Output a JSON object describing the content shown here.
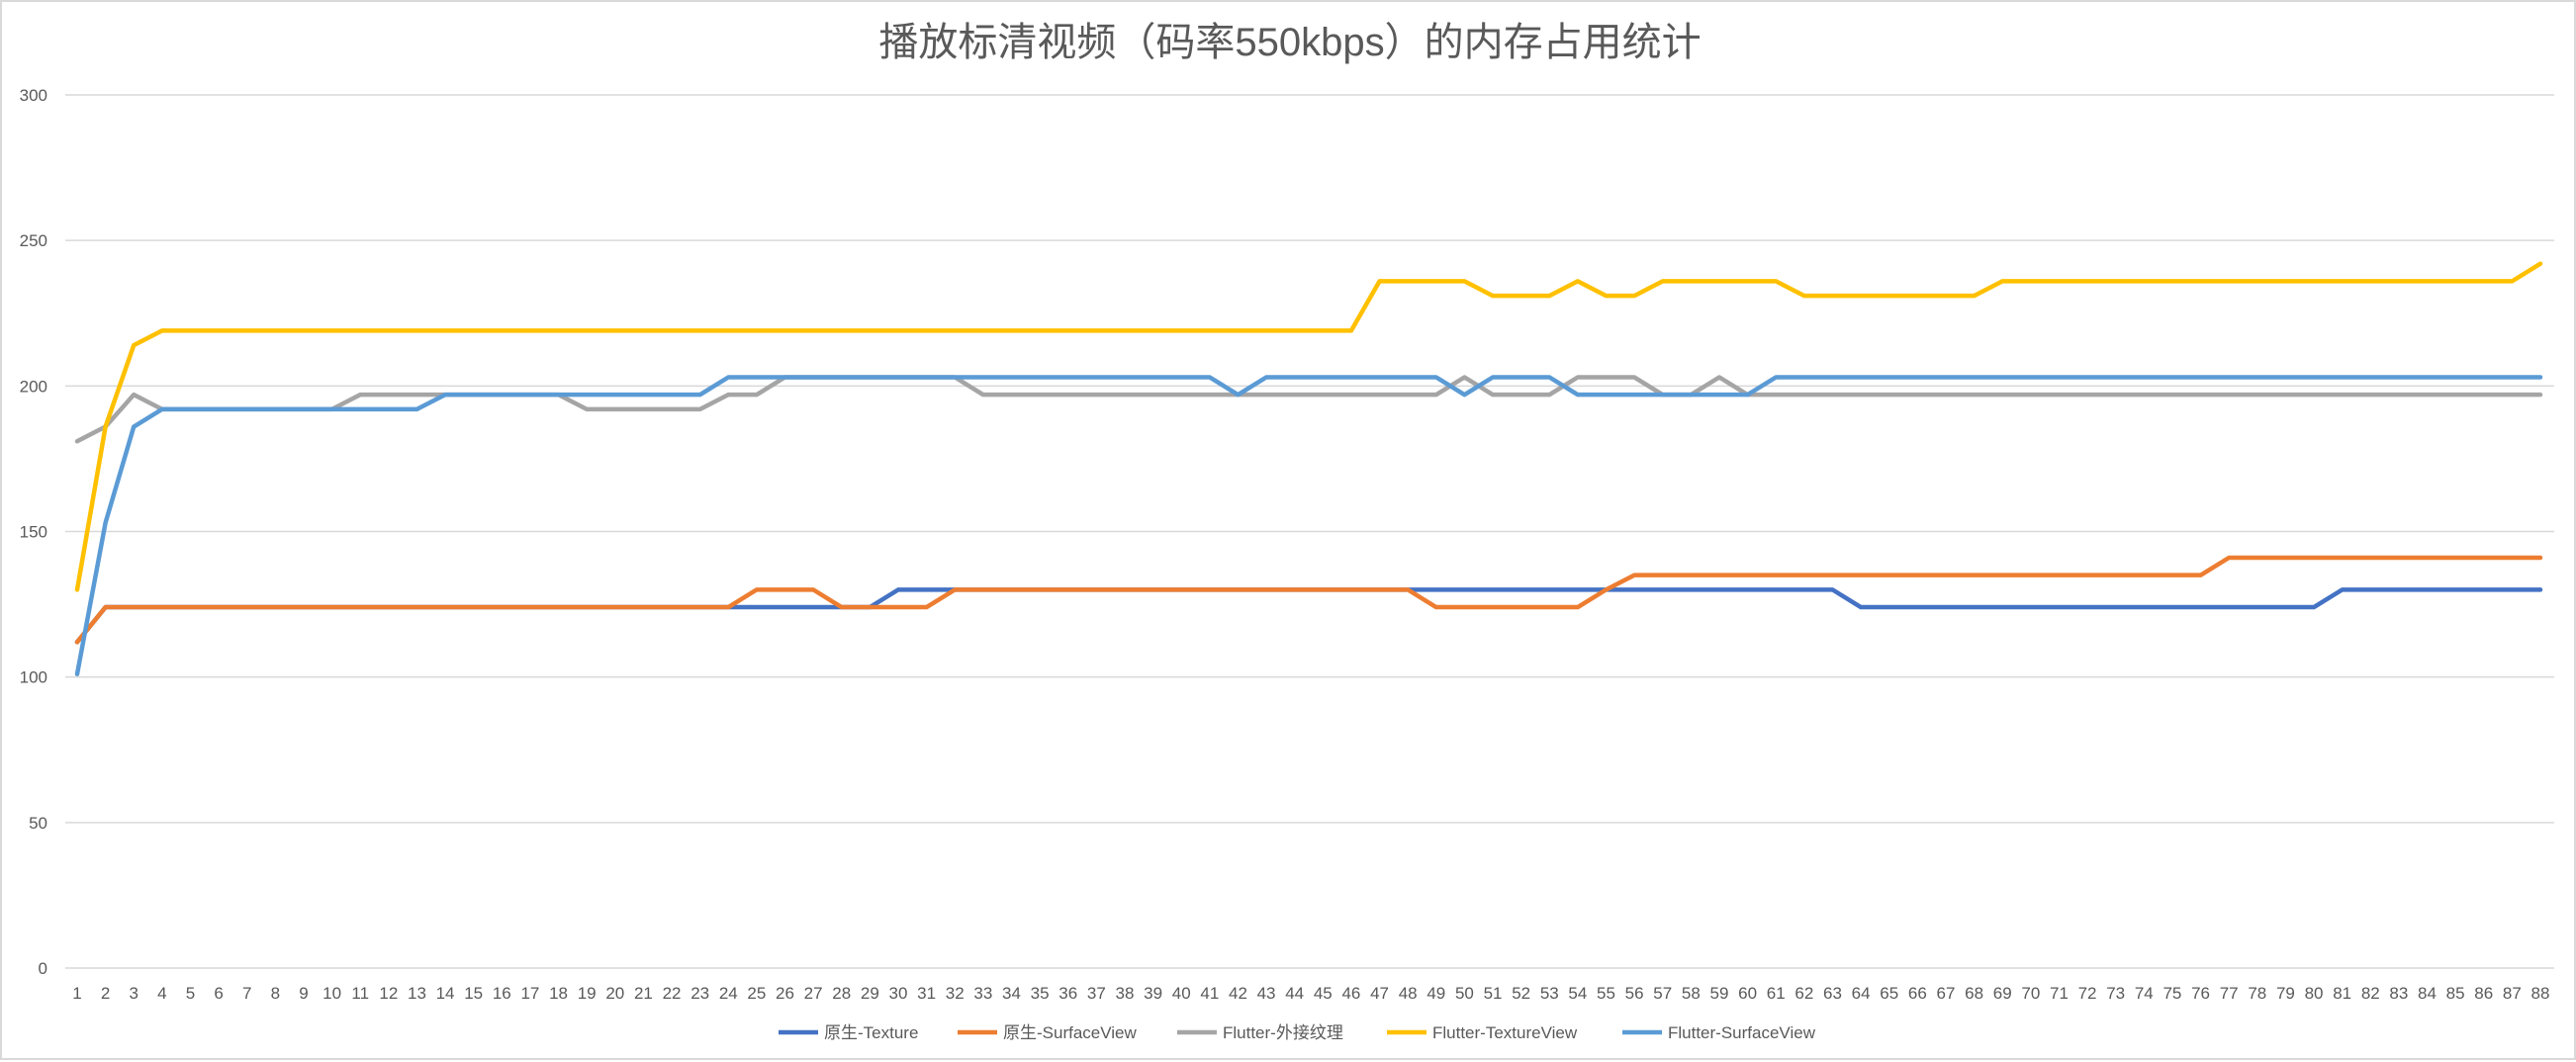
{
  "chart_data": {
    "type": "line",
    "title": "播放标清视频（码率550kbps）的内存占用统计",
    "xlabel": "",
    "ylabel": "",
    "ylim": [
      0,
      300
    ],
    "yticks": [
      0,
      50,
      100,
      150,
      200,
      250,
      300
    ],
    "grid": true,
    "legend_position": "bottom",
    "x": [
      1,
      2,
      3,
      4,
      5,
      6,
      7,
      8,
      9,
      10,
      11,
      12,
      13,
      14,
      15,
      16,
      17,
      18,
      19,
      20,
      21,
      22,
      23,
      24,
      25,
      26,
      27,
      28,
      29,
      30,
      31,
      32,
      33,
      34,
      35,
      36,
      37,
      38,
      39,
      40,
      41,
      42,
      43,
      44,
      45,
      46,
      47,
      48,
      49,
      50,
      51,
      52,
      53,
      54,
      55,
      56,
      57,
      58,
      59,
      60,
      61,
      62,
      63,
      64,
      65,
      66,
      67,
      68,
      69,
      70,
      71,
      72,
      73,
      74,
      75,
      76,
      77,
      78,
      79,
      80,
      81,
      82,
      83,
      84,
      85,
      86,
      87,
      88
    ],
    "series": [
      {
        "name": "原生-Texture",
        "color": "#4472C4",
        "values": [
          112,
          124,
          124,
          124,
          124,
          124,
          124,
          124,
          124,
          124,
          124,
          124,
          124,
          124,
          124,
          124,
          124,
          124,
          124,
          124,
          124,
          124,
          124,
          124,
          124,
          124,
          124,
          124,
          124,
          130,
          130,
          130,
          130,
          130,
          130,
          130,
          130,
          130,
          130,
          130,
          130,
          130,
          130,
          130,
          130,
          130,
          130,
          130,
          130,
          130,
          130,
          130,
          130,
          130,
          130,
          130,
          130,
          130,
          130,
          130,
          130,
          130,
          130,
          124,
          124,
          124,
          124,
          124,
          124,
          124,
          124,
          124,
          124,
          124,
          124,
          124,
          124,
          124,
          124,
          124,
          130,
          130,
          130,
          130,
          130,
          130,
          130,
          130
        ]
      },
      {
        "name": "原生-SurfaceView",
        "color": "#ED7D31",
        "values": [
          112,
          124,
          124,
          124,
          124,
          124,
          124,
          124,
          124,
          124,
          124,
          124,
          124,
          124,
          124,
          124,
          124,
          124,
          124,
          124,
          124,
          124,
          124,
          124,
          130,
          130,
          130,
          124,
          124,
          124,
          124,
          130,
          130,
          130,
          130,
          130,
          130,
          130,
          130,
          130,
          130,
          130,
          130,
          130,
          130,
          130,
          130,
          130,
          124,
          124,
          124,
          124,
          124,
          124,
          130,
          135,
          135,
          135,
          135,
          135,
          135,
          135,
          135,
          135,
          135,
          135,
          135,
          135,
          135,
          135,
          135,
          135,
          135,
          135,
          135,
          135,
          141,
          141,
          141,
          141,
          141,
          141,
          141,
          141,
          141,
          141,
          141,
          141
        ]
      },
      {
        "name": "Flutter-外接纹理",
        "color": "#A5A5A5",
        "values": [
          181,
          186,
          197,
          192,
          192,
          192,
          192,
          192,
          192,
          192,
          197,
          197,
          197,
          197,
          197,
          197,
          197,
          197,
          192,
          192,
          192,
          192,
          192,
          197,
          197,
          203,
          203,
          203,
          203,
          203,
          203,
          203,
          197,
          197,
          197,
          197,
          197,
          197,
          197,
          197,
          197,
          197,
          197,
          197,
          197,
          197,
          197,
          197,
          197,
          203,
          197,
          197,
          197,
          203,
          203,
          203,
          197,
          197,
          203,
          197,
          197,
          197,
          197,
          197,
          197,
          197,
          197,
          197,
          197,
          197,
          197,
          197,
          197,
          197,
          197,
          197,
          197,
          197,
          197,
          197,
          197,
          197,
          197,
          197,
          197,
          197,
          197,
          197
        ]
      },
      {
        "name": "Flutter-TextureView",
        "color": "#FFC000",
        "values": [
          130,
          186,
          214,
          219,
          219,
          219,
          219,
          219,
          219,
          219,
          219,
          219,
          219,
          219,
          219,
          219,
          219,
          219,
          219,
          219,
          219,
          219,
          219,
          219,
          219,
          219,
          219,
          219,
          219,
          219,
          219,
          219,
          219,
          219,
          219,
          219,
          219,
          219,
          219,
          219,
          219,
          219,
          219,
          219,
          219,
          219,
          236,
          236,
          236,
          236,
          231,
          231,
          231,
          236,
          231,
          231,
          236,
          236,
          236,
          236,
          236,
          231,
          231,
          231,
          231,
          231,
          231,
          231,
          236,
          236,
          236,
          236,
          236,
          236,
          236,
          236,
          236,
          236,
          236,
          236,
          236,
          236,
          236,
          236,
          236,
          236,
          236,
          242
        ]
      },
      {
        "name": "Flutter-SurfaceView",
        "color": "#5B9BD5",
        "values": [
          101,
          153,
          186,
          192,
          192,
          192,
          192,
          192,
          192,
          192,
          192,
          192,
          192,
          197,
          197,
          197,
          197,
          197,
          197,
          197,
          197,
          197,
          197,
          203,
          203,
          203,
          203,
          203,
          203,
          203,
          203,
          203,
          203,
          203,
          203,
          203,
          203,
          203,
          203,
          203,
          203,
          197,
          203,
          203,
          203,
          203,
          203,
          203,
          203,
          197,
          203,
          203,
          203,
          197,
          197,
          197,
          197,
          197,
          197,
          197,
          203,
          203,
          203,
          203,
          203,
          203,
          203,
          203,
          203,
          203,
          203,
          203,
          203,
          203,
          203,
          203,
          203,
          203,
          203,
          203,
          203,
          203,
          203,
          203,
          203,
          203,
          203,
          203
        ]
      }
    ]
  }
}
